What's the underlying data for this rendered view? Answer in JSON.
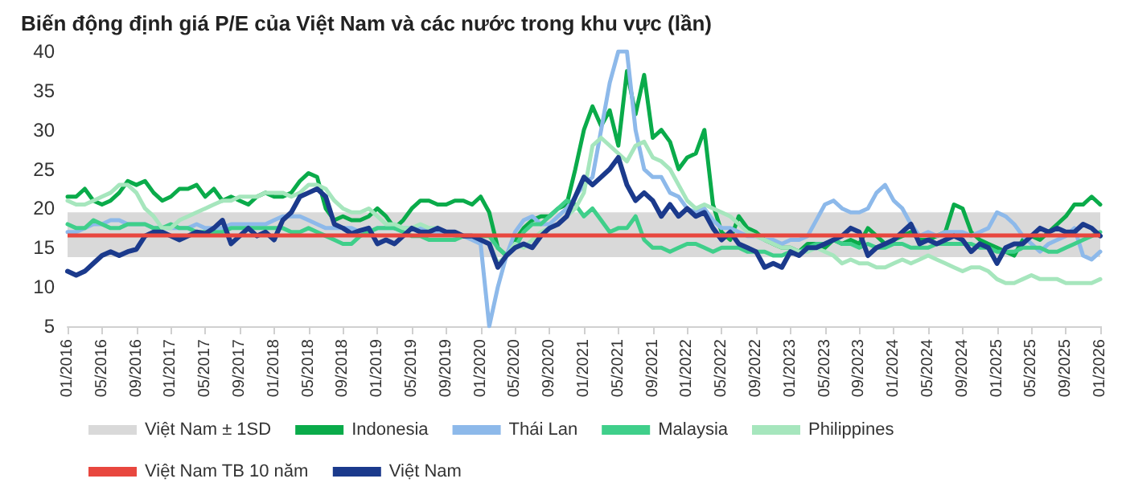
{
  "chart_data": {
    "type": "line",
    "title": "Biến động định giá P/E của Việt Nam và các nước trong khu vực (lần)",
    "categories": [
      "01/2016",
      null,
      null,
      null,
      "05/2016",
      null,
      null,
      null,
      "09/2016",
      null,
      null,
      null,
      "01/2017",
      null,
      null,
      null,
      "05/2017",
      null,
      null,
      null,
      "09/2017",
      null,
      null,
      null,
      "01/2018",
      null,
      null,
      null,
      "05/2018",
      null,
      null,
      null,
      "09/2018",
      null,
      null,
      null,
      "01/2019",
      null,
      null,
      null,
      "05/2019",
      null,
      null,
      null,
      "09/2019",
      null,
      null,
      null,
      "01/2020",
      null,
      null,
      null,
      "05/2020",
      null,
      null,
      null,
      "09/2020",
      null,
      null,
      null,
      "01/2021",
      null,
      null,
      null,
      "05/2021",
      null,
      null,
      null,
      "09/2021",
      null,
      null,
      null,
      "01/2022",
      null,
      null,
      null,
      "05/2022",
      null,
      null,
      null,
      "09/2022",
      null,
      null,
      null,
      "01/2023",
      null,
      null,
      null,
      "05/2023",
      null,
      null,
      null,
      "09/2023",
      null,
      null,
      null,
      "01/2024",
      null,
      null,
      null,
      "05/2024",
      null,
      null,
      null,
      "09/2024",
      null,
      null,
      null,
      "01/2025",
      null,
      null,
      null,
      "05/2025",
      null,
      null,
      null,
      "09/2025",
      null,
      null,
      null,
      "01/2026"
    ],
    "series": [
      {
        "name": "Indonesia",
        "color": "#0aab4a",
        "values": [
          21.5,
          21.5,
          22.5,
          21,
          20.5,
          21,
          22,
          23.5,
          23,
          23.5,
          22,
          21,
          21.5,
          22.5,
          22.5,
          23,
          21.5,
          22.5,
          21,
          21.5,
          21,
          20.5,
          21.5,
          22,
          21.5,
          21.5,
          22,
          23.5,
          24.5,
          24,
          20,
          18.5,
          19,
          18.5,
          18.5,
          19,
          20,
          19,
          17.5,
          18.5,
          20,
          21,
          21,
          20.5,
          20.5,
          21,
          21,
          20.5,
          21.5,
          19.5,
          15,
          14,
          16,
          17.5,
          18.5,
          19,
          19,
          20,
          20.5,
          25,
          30,
          33,
          30.5,
          32.5,
          28,
          37.5,
          32,
          37,
          29,
          30,
          28.5,
          25,
          26.5,
          27,
          30,
          20.5,
          17,
          16,
          19,
          17.5,
          17,
          16,
          15.5,
          15,
          15,
          14.5,
          15.5,
          15.5,
          15,
          16,
          15.5,
          16,
          15.5,
          17.5,
          16.5,
          15.5,
          16,
          16.5,
          17,
          16,
          16,
          16.5,
          17,
          20.5,
          20,
          17,
          16,
          15.5,
          15,
          14.5,
          14,
          16,
          16.5,
          16,
          17,
          18,
          19,
          20.5,
          20.5,
          21.5,
          20.5
        ]
      },
      {
        "name": "Thái Lan",
        "color": "#8db9ea",
        "values": [
          17,
          17,
          17.5,
          18,
          18,
          18.5,
          18.5,
          18,
          18,
          18,
          17.5,
          17.5,
          17.5,
          17.5,
          17.5,
          18,
          17.5,
          17.5,
          17.5,
          18,
          18,
          18,
          18,
          18,
          18.5,
          19,
          19,
          19,
          18.5,
          18,
          17.5,
          17.5,
          17.5,
          17.5,
          17,
          17,
          17.5,
          17.5,
          17.5,
          17.5,
          17.5,
          17.5,
          17,
          17,
          17,
          16.5,
          16.5,
          16,
          15.5,
          5,
          10,
          14,
          17,
          18.5,
          19,
          18,
          18,
          19,
          20,
          21.5,
          23,
          24,
          30,
          36,
          40,
          40,
          30,
          25,
          24,
          24,
          22,
          21.5,
          20,
          19.5,
          20,
          18.5,
          17.5,
          17.5,
          17,
          16.5,
          16.5,
          16,
          16,
          15.5,
          16,
          16,
          16.5,
          18.5,
          20.5,
          21,
          20,
          19.5,
          19.5,
          20,
          22,
          23,
          21,
          20,
          18,
          16.5,
          17,
          16.5,
          17,
          17,
          17,
          16.5,
          17,
          17.5,
          19.5,
          19,
          18,
          16.5,
          15.5,
          14.5,
          15.5,
          16,
          16.5,
          17.5,
          14,
          13.5,
          14.5
        ]
      },
      {
        "name": "Malaysia",
        "color": "#3fcf8a",
        "values": [
          18,
          17.5,
          17.5,
          18.5,
          18,
          17.5,
          17.5,
          18,
          18,
          18,
          17.5,
          17.5,
          18,
          17.5,
          17.5,
          17,
          17,
          17,
          17,
          17.5,
          17.5,
          17.5,
          17.5,
          17.5,
          17.5,
          17.5,
          17,
          17,
          17.5,
          17,
          16.5,
          16,
          15.5,
          15.5,
          16.5,
          17,
          17.5,
          17.5,
          17.5,
          17,
          16.5,
          16.5,
          16,
          16,
          16,
          16,
          16.5,
          16.5,
          16.5,
          16.5,
          15,
          14,
          15,
          17,
          18,
          18,
          19,
          20,
          21,
          20.5,
          19,
          20,
          18.5,
          17,
          17.5,
          17.5,
          19,
          16,
          15,
          15,
          14.5,
          15,
          15.5,
          15.5,
          15,
          14.5,
          15,
          15,
          15,
          14.5,
          14.5,
          14.5,
          14,
          14,
          14.5,
          14.5,
          15,
          15.5,
          15.5,
          16,
          15.5,
          15.5,
          15,
          15.5,
          15,
          15,
          15.5,
          15.5,
          15,
          15,
          15,
          15.5,
          15.5,
          15.5,
          15.5,
          15.5,
          15,
          15,
          14.5,
          14.5,
          14.5,
          15,
          15,
          15,
          14.5,
          14.5,
          15,
          15.5,
          16,
          16.5,
          17
        ]
      },
      {
        "name": "Philippines",
        "color": "#a6e6bd",
        "values": [
          21,
          20.5,
          20.5,
          21,
          21.5,
          22,
          23,
          23,
          22,
          20,
          19,
          17.5,
          17.5,
          18.5,
          19,
          19.5,
          20,
          20.5,
          21,
          21,
          21.5,
          21.5,
          21.5,
          22,
          22,
          22,
          21.5,
          22,
          23,
          23,
          22.5,
          21,
          20,
          19.5,
          19.5,
          20,
          19,
          18,
          18,
          17.5,
          17.5,
          18,
          17.5,
          17.5,
          17,
          17,
          16.5,
          16.5,
          16,
          15.5,
          13,
          14,
          15.5,
          15,
          16,
          17,
          17.5,
          18,
          19,
          20,
          22,
          28,
          29,
          28,
          27,
          26,
          28,
          28.5,
          26.5,
          26,
          25,
          23,
          21,
          20,
          20.5,
          20,
          19.5,
          19,
          18,
          17,
          16.5,
          16,
          15.5,
          15,
          15,
          14.5,
          14.5,
          15,
          14.5,
          14,
          13,
          13.5,
          13,
          13,
          12.5,
          12.5,
          13,
          13.5,
          13,
          13.5,
          14,
          13.5,
          13,
          12.5,
          12,
          12.5,
          12.5,
          12,
          11,
          10.5,
          10.5,
          11,
          11.5,
          11,
          11,
          11,
          10.5,
          10.5,
          10.5,
          10.5,
          11
        ]
      },
      {
        "name": "Việt Nam",
        "color": "#1b3a8c",
        "values": [
          12,
          11.5,
          12,
          13,
          14,
          14.5,
          14,
          14.5,
          14.8,
          16.5,
          17,
          17,
          16.5,
          16,
          16.5,
          17,
          16.8,
          17.5,
          18.5,
          15.5,
          16.5,
          17.5,
          16.5,
          17,
          16,
          18.5,
          19.5,
          21.5,
          22,
          22.5,
          21.5,
          18,
          17.5,
          16.8,
          17.2,
          17.5,
          15.5,
          16,
          15.5,
          16.5,
          17.5,
          17,
          17,
          17.5,
          17,
          17,
          16.5,
          16.5,
          16,
          15.5,
          12.5,
          14,
          15,
          15.5,
          15,
          16.5,
          17.5,
          18,
          19,
          21.5,
          24,
          23,
          24,
          25,
          26.5,
          23,
          21,
          22,
          21,
          19,
          20.5,
          19,
          20,
          19,
          19.5,
          17.5,
          16,
          17,
          15.5,
          15,
          14.5,
          12.5,
          13,
          12.5,
          14.5,
          14,
          15,
          15,
          15.5,
          16,
          16.5,
          17.5,
          17,
          14,
          15,
          15.5,
          16,
          17,
          18,
          15.5,
          16,
          15.5,
          16,
          16.5,
          16,
          14.5,
          15.5,
          15,
          13,
          15,
          15.5,
          15.5,
          16.5,
          17.5,
          17,
          17.5,
          17,
          17,
          18,
          17.5,
          16.5
        ]
      }
    ],
    "bands": [
      {
        "axis": "y",
        "from": 13.8,
        "to": 19.5,
        "label": "Việt Nam ± 1SD",
        "color": "#d9d9d9"
      }
    ],
    "ref_lines": [
      {
        "axis": "y",
        "value": 16.7,
        "label": "Việt Nam TB 10 năm",
        "color": "#e8473f"
      }
    ],
    "ylim": [
      5,
      40
    ],
    "yticks": [
      5,
      10,
      15,
      20,
      25,
      30,
      35,
      40
    ],
    "grid": false,
    "legend": "bottom",
    "marker": "none",
    "line_style": "solid"
  }
}
